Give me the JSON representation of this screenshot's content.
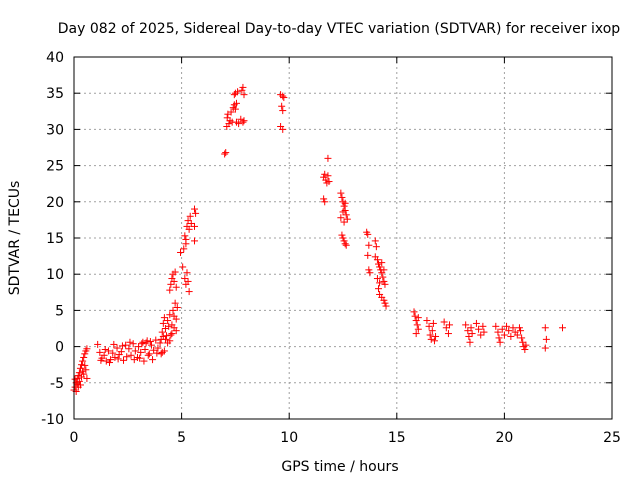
{
  "chart_data": {
    "type": "scatter",
    "title": "Day 082 of 2025, Sidereal Day-to-day VTEC variation (SDTVAR) for receiver ixop",
    "xlabel": "GPS time / hours",
    "ylabel": "SDTVAR / TECUs",
    "xlim": [
      0,
      25
    ],
    "ylim": [
      -10,
      40
    ],
    "xticks": [
      0,
      5,
      10,
      15,
      20,
      25
    ],
    "yticks": [
      -10,
      -5,
      0,
      5,
      10,
      15,
      20,
      25,
      30,
      35,
      40
    ],
    "grid": true,
    "marker": "plus",
    "color": "#ff0000",
    "series": [
      {
        "name": "SDTVAR",
        "points": [
          [
            0.0,
            -6.0
          ],
          [
            0.05,
            -5.6
          ],
          [
            0.1,
            -5.0
          ],
          [
            0.15,
            -4.4
          ],
          [
            0.2,
            -4.0
          ],
          [
            0.25,
            -3.6
          ],
          [
            0.3,
            -3.0
          ],
          [
            0.35,
            -2.5
          ],
          [
            0.4,
            -2.0
          ],
          [
            0.45,
            -1.5
          ],
          [
            0.5,
            -1.0
          ],
          [
            0.55,
            -0.6
          ],
          [
            0.6,
            -0.3
          ],
          [
            0.05,
            -4.5
          ],
          [
            0.15,
            -5.2
          ],
          [
            0.25,
            -4.8
          ],
          [
            0.35,
            -4.2
          ],
          [
            0.45,
            -3.8
          ],
          [
            0.55,
            -3.2
          ],
          [
            0.6,
            -4.4
          ],
          [
            0.5,
            -2.6
          ],
          [
            0.4,
            -3.4
          ],
          [
            0.3,
            -5.3
          ],
          [
            0.2,
            -5.6
          ],
          [
            0.1,
            -6.2
          ],
          [
            1.1,
            0.3
          ],
          [
            1.2,
            -0.8
          ],
          [
            1.3,
            -1.6
          ],
          [
            1.4,
            -1.2
          ],
          [
            1.5,
            -2.0
          ],
          [
            1.6,
            -0.6
          ],
          [
            1.7,
            -1.8
          ],
          [
            1.8,
            -0.9
          ],
          [
            1.9,
            -1.5
          ],
          [
            2.0,
            -0.2
          ],
          [
            2.1,
            -1.1
          ],
          [
            2.2,
            -0.7
          ],
          [
            2.3,
            -1.9
          ],
          [
            2.4,
            0.2
          ],
          [
            1.25,
            -1.9
          ],
          [
            1.45,
            -0.4
          ],
          [
            1.65,
            -2.2
          ],
          [
            1.85,
            0.3
          ],
          [
            2.05,
            -1.7
          ],
          [
            2.25,
            0.1
          ],
          [
            2.45,
            -1.4
          ],
          [
            2.55,
            -0.3
          ],
          [
            2.65,
            -1.2
          ],
          [
            2.75,
            0.4
          ],
          [
            2.85,
            -0.6
          ],
          [
            2.95,
            -1.5
          ],
          [
            3.0,
            0.0
          ],
          [
            3.1,
            -0.8
          ],
          [
            3.2,
            0.6
          ],
          [
            3.3,
            -0.4
          ],
          [
            3.4,
            0.8
          ],
          [
            3.5,
            -1.0
          ],
          [
            3.6,
            0.2
          ],
          [
            3.7,
            -0.5
          ],
          [
            3.8,
            0.9
          ],
          [
            3.9,
            -0.2
          ],
          [
            4.0,
            0.5
          ],
          [
            4.1,
            -0.8
          ],
          [
            2.6,
            0.6
          ],
          [
            2.8,
            -1.8
          ],
          [
            3.05,
            -1.6
          ],
          [
            3.25,
            -2.0
          ],
          [
            3.45,
            -1.2
          ],
          [
            3.65,
            -1.8
          ],
          [
            3.85,
            -0.9
          ],
          [
            4.05,
            -1.0
          ],
          [
            4.2,
            -0.6
          ],
          [
            3.15,
            0.4
          ],
          [
            3.35,
            0.5
          ],
          [
            3.55,
            0.7
          ],
          [
            4.05,
            1.0
          ],
          [
            4.1,
            2.0
          ],
          [
            4.15,
            3.2
          ],
          [
            4.2,
            4.0
          ],
          [
            4.25,
            2.5
          ],
          [
            4.3,
            1.5
          ],
          [
            4.35,
            3.6
          ],
          [
            4.4,
            2.8
          ],
          [
            4.45,
            4.4
          ],
          [
            4.5,
            1.6
          ],
          [
            4.55,
            3.0
          ],
          [
            4.6,
            5.0
          ],
          [
            4.65,
            4.2
          ],
          [
            4.7,
            6.0
          ],
          [
            4.75,
            2.2
          ],
          [
            4.35,
            0.5
          ],
          [
            4.45,
            0.8
          ],
          [
            4.55,
            1.8
          ],
          [
            4.65,
            2.6
          ],
          [
            4.75,
            3.8
          ],
          [
            4.8,
            5.4
          ],
          [
            4.25,
            1.0
          ],
          [
            4.15,
            1.4
          ],
          [
            4.45,
            7.8
          ],
          [
            4.5,
            8.6
          ],
          [
            4.55,
            9.4
          ],
          [
            4.6,
            10.0
          ],
          [
            4.65,
            9.0
          ],
          [
            4.7,
            10.3
          ],
          [
            4.75,
            8.2
          ],
          [
            4.95,
            13.0
          ],
          [
            5.05,
            11.0
          ],
          [
            5.1,
            13.5
          ],
          [
            5.15,
            15.3
          ],
          [
            5.2,
            14.2
          ],
          [
            5.25,
            16.6
          ],
          [
            5.3,
            17.4
          ],
          [
            5.35,
            16.2
          ],
          [
            5.4,
            18.0
          ],
          [
            5.45,
            17.0
          ],
          [
            5.15,
            9.4
          ],
          [
            5.2,
            8.6
          ],
          [
            5.25,
            10.2
          ],
          [
            5.3,
            9.0
          ],
          [
            5.35,
            7.6
          ],
          [
            5.2,
            14.8
          ],
          [
            5.6,
            19.0
          ],
          [
            5.65,
            18.4
          ],
          [
            5.6,
            16.6
          ],
          [
            5.6,
            14.6
          ],
          [
            7.0,
            26.6
          ],
          [
            7.05,
            26.8
          ],
          [
            7.1,
            30.4
          ],
          [
            7.12,
            31.6
          ],
          [
            7.15,
            32.1
          ],
          [
            7.2,
            30.8
          ],
          [
            7.25,
            31.2
          ],
          [
            7.3,
            32.4
          ],
          [
            7.35,
            31.0
          ],
          [
            7.4,
            33.0
          ],
          [
            7.45,
            33.4
          ],
          [
            7.5,
            32.8
          ],
          [
            7.55,
            33.6
          ],
          [
            7.45,
            34.8
          ],
          [
            7.5,
            35.0
          ],
          [
            7.6,
            35.2
          ],
          [
            7.55,
            31.0
          ],
          [
            7.65,
            30.8
          ],
          [
            7.75,
            31.4
          ],
          [
            7.85,
            31.0
          ],
          [
            7.9,
            31.2
          ],
          [
            7.8,
            35.4
          ],
          [
            7.85,
            35.8
          ],
          [
            7.9,
            34.8
          ],
          [
            9.6,
            34.8
          ],
          [
            9.7,
            34.6
          ],
          [
            9.65,
            33.2
          ],
          [
            9.7,
            32.6
          ],
          [
            9.6,
            30.4
          ],
          [
            9.7,
            30.0
          ],
          [
            9.75,
            34.4
          ],
          [
            11.6,
            20.4
          ],
          [
            11.65,
            20.0
          ],
          [
            11.6,
            23.4
          ],
          [
            11.65,
            23.8
          ],
          [
            11.7,
            23.0
          ],
          [
            11.75,
            22.6
          ],
          [
            11.8,
            23.6
          ],
          [
            11.85,
            22.8
          ],
          [
            11.8,
            26.0
          ],
          [
            12.4,
            21.2
          ],
          [
            12.45,
            20.6
          ],
          [
            12.5,
            20.0
          ],
          [
            12.55,
            19.4
          ],
          [
            12.6,
            18.8
          ],
          [
            12.65,
            18.2
          ],
          [
            12.7,
            17.6
          ],
          [
            12.5,
            18.6
          ],
          [
            12.6,
            19.8
          ],
          [
            12.4,
            17.8
          ],
          [
            12.55,
            17.2
          ],
          [
            12.5,
            15.0
          ],
          [
            12.55,
            14.6
          ],
          [
            12.6,
            14.2
          ],
          [
            12.65,
            14.0
          ],
          [
            12.45,
            15.4
          ],
          [
            13.6,
            15.8
          ],
          [
            13.65,
            15.5
          ],
          [
            13.7,
            14.0
          ],
          [
            13.65,
            12.6
          ],
          [
            13.7,
            10.6
          ],
          [
            13.75,
            10.2
          ],
          [
            14.0,
            14.6
          ],
          [
            14.05,
            13.8
          ],
          [
            14.0,
            12.4
          ],
          [
            14.1,
            12.0
          ],
          [
            14.15,
            11.4
          ],
          [
            14.2,
            11.0
          ],
          [
            14.25,
            10.6
          ],
          [
            14.3,
            10.2
          ],
          [
            14.35,
            9.6
          ],
          [
            14.4,
            9.0
          ],
          [
            14.45,
            8.6
          ],
          [
            14.1,
            9.4
          ],
          [
            14.2,
            8.8
          ],
          [
            14.3,
            11.6
          ],
          [
            14.4,
            10.6
          ],
          [
            14.2,
            7.2
          ],
          [
            14.3,
            6.8
          ],
          [
            14.4,
            6.4
          ],
          [
            14.45,
            6.0
          ],
          [
            14.5,
            5.6
          ],
          [
            14.15,
            8.0
          ],
          [
            15.8,
            4.8
          ],
          [
            15.85,
            4.2
          ],
          [
            15.9,
            3.6
          ],
          [
            15.95,
            3.0
          ],
          [
            16.0,
            2.4
          ],
          [
            15.9,
            1.8
          ],
          [
            16.0,
            4.0
          ],
          [
            16.4,
            3.6
          ],
          [
            16.5,
            2.8
          ],
          [
            16.55,
            1.6
          ],
          [
            16.6,
            1.0
          ],
          [
            16.65,
            2.2
          ],
          [
            16.7,
            3.2
          ],
          [
            16.75,
            0.8
          ],
          [
            16.8,
            1.4
          ],
          [
            17.2,
            3.4
          ],
          [
            17.3,
            2.6
          ],
          [
            17.4,
            1.8
          ],
          [
            17.45,
            3.0
          ],
          [
            18.2,
            3.0
          ],
          [
            18.3,
            2.2
          ],
          [
            18.35,
            1.4
          ],
          [
            18.4,
            0.6
          ],
          [
            18.45,
            2.6
          ],
          [
            18.5,
            1.8
          ],
          [
            18.7,
            3.2
          ],
          [
            18.8,
            2.4
          ],
          [
            18.9,
            1.6
          ],
          [
            19.0,
            2.8
          ],
          [
            19.05,
            2.0
          ],
          [
            19.6,
            2.8
          ],
          [
            19.7,
            2.0
          ],
          [
            19.75,
            1.2
          ],
          [
            19.8,
            0.6
          ],
          [
            19.9,
            2.4
          ],
          [
            20.0,
            1.6
          ],
          [
            20.1,
            2.8
          ],
          [
            20.2,
            2.2
          ],
          [
            20.3,
            1.4
          ],
          [
            20.4,
            2.6
          ],
          [
            20.5,
            2.0
          ],
          [
            20.6,
            1.6
          ],
          [
            20.7,
            2.6
          ],
          [
            20.8,
            1.2
          ],
          [
            20.85,
            0.6
          ],
          [
            20.9,
            0.0
          ],
          [
            20.95,
            -0.4
          ],
          [
            21.0,
            0.2
          ],
          [
            20.75,
            2.2
          ],
          [
            21.9,
            2.6
          ],
          [
            21.95,
            1.0
          ],
          [
            21.9,
            -0.2
          ],
          [
            22.7,
            2.6
          ]
        ]
      }
    ]
  }
}
